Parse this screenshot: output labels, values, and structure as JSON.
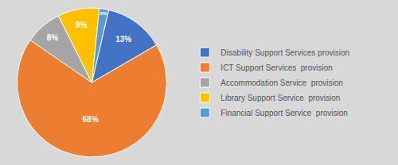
{
  "chart_data": {
    "type": "pie",
    "categories": [
      "Disability Support Services provision",
      "ICT Support Services  provision",
      "Accommodation Service  provision",
      "Library Support Service  provision",
      "Financial Support Service  provision"
    ],
    "values": [
      13,
      68,
      8,
      9,
      2
    ],
    "value_labels": [
      "13%",
      "68%",
      "8%",
      "9%",
      "2%"
    ],
    "colors": [
      "#4472C4",
      "#ED7D31",
      "#A5A5A5",
      "#FFC000",
      "#5B9BD5"
    ],
    "data_labels": true,
    "legend": "right"
  }
}
